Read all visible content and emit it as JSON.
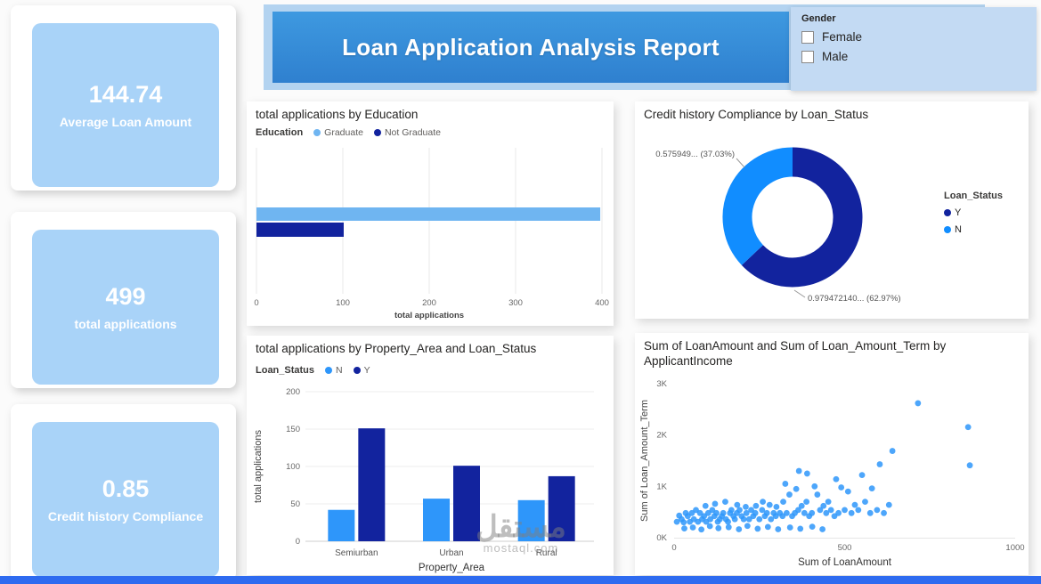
{
  "header": {
    "title": "Loan Application Analysis Report"
  },
  "gender_slicer": {
    "label": "Gender",
    "options": [
      {
        "label": "Female",
        "checked": false
      },
      {
        "label": "Male",
        "checked": false
      }
    ]
  },
  "kpis": [
    {
      "value": "144.74",
      "label": "Average Loan Amount"
    },
    {
      "value": "499",
      "label": "total applications"
    },
    {
      "value": "0.85",
      "label": "Credit history Compliance"
    }
  ],
  "colors": {
    "kpi_card": "#A9D3F8",
    "header_strip": "#B3D3F0",
    "banner_top": "#3E99E0",
    "banner_bottom": "#2F80CF",
    "slicer_bg": "#C3DAF3",
    "bottom_bar": "#2E6BF0",
    "light_blue": "#6FB5F1",
    "medium_blue": "#2E96FA",
    "bright_blue": "#118DFF",
    "dark_navy": "#12239E"
  },
  "watermark": {
    "line1": "مستقل",
    "line2": "mostaql.com"
  },
  "chart_data": [
    {
      "type": "bar",
      "orientation": "horizontal",
      "title": "total applications by Education",
      "legend_title": "Education",
      "series": [
        {
          "name": "Graduate",
          "color": "#6FB5F1",
          "value": 398
        },
        {
          "name": "Not Graduate",
          "color": "#12239E",
          "value": 101
        }
      ],
      "xlabel": "total applications",
      "xlim": [
        0,
        400
      ],
      "xticks": [
        0,
        100,
        200,
        300,
        400
      ]
    },
    {
      "type": "pie",
      "donut": true,
      "title": "Credit history Compliance by Loan_Status",
      "legend_title": "Loan_Status",
      "slices": [
        {
          "name": "Y",
          "color": "#12239E",
          "pct": 62.97,
          "label": "0.979472140... (62.97%)"
        },
        {
          "name": "N",
          "color": "#118DFF",
          "pct": 37.03,
          "label": "0.575949... (37.03%)"
        }
      ]
    },
    {
      "type": "bar",
      "orientation": "vertical",
      "title": "total applications by Property_Area and Loan_Status",
      "legend_title": "Loan_Status",
      "categories": [
        "Semiurban",
        "Urban",
        "Rural"
      ],
      "series": [
        {
          "name": "N",
          "color": "#2E96FA",
          "values": [
            42,
            57,
            55
          ]
        },
        {
          "name": "Y",
          "color": "#12239E",
          "values": [
            151,
            101,
            87
          ]
        }
      ],
      "ylabel": "total applications",
      "xlabel": "Property_Area",
      "ylim": [
        0,
        200
      ],
      "yticks": [
        0,
        50,
        100,
        150,
        200
      ]
    },
    {
      "type": "scatter",
      "title": "Sum of LoanAmount and Sum of Loan_Amount_Term by ApplicantIncome",
      "xlabel": "Sum of LoanAmount",
      "ylabel": "Sum of Loan_Amount_Term",
      "xlim": [
        0,
        1000
      ],
      "ylim": [
        0,
        3000
      ],
      "xticks": [
        0,
        500,
        1000
      ],
      "yticks": [
        0,
        1000,
        2000,
        3000
      ],
      "ytick_labels": [
        "0K",
        "1K",
        "2K",
        "3K"
      ],
      "color": "#2E96FA",
      "points": [
        [
          8,
          310
        ],
        [
          15,
          430
        ],
        [
          22,
          360
        ],
        [
          28,
          300
        ],
        [
          30,
          180
        ],
        [
          34,
          480
        ],
        [
          40,
          420
        ],
        [
          46,
          310
        ],
        [
          52,
          480
        ],
        [
          55,
          200
        ],
        [
          58,
          360
        ],
        [
          64,
          540
        ],
        [
          70,
          310
        ],
        [
          76,
          480
        ],
        [
          80,
          160
        ],
        [
          82,
          360
        ],
        [
          88,
          420
        ],
        [
          92,
          620
        ],
        [
          94,
          310
        ],
        [
          100,
          480
        ],
        [
          105,
          225
        ],
        [
          106,
          360
        ],
        [
          112,
          540
        ],
        [
          118,
          420
        ],
        [
          120,
          660
        ],
        [
          124,
          480
        ],
        [
          128,
          310
        ],
        [
          130,
          185
        ],
        [
          134,
          360
        ],
        [
          140,
          420
        ],
        [
          144,
          480
        ],
        [
          150,
          700
        ],
        [
          152,
          360
        ],
        [
          158,
          310
        ],
        [
          160,
          205
        ],
        [
          164,
          480
        ],
        [
          168,
          540
        ],
        [
          174,
          420
        ],
        [
          178,
          360
        ],
        [
          184,
          480
        ],
        [
          185,
          640
        ],
        [
          190,
          165
        ],
        [
          192,
          540
        ],
        [
          198,
          420
        ],
        [
          204,
          360
        ],
        [
          210,
          600
        ],
        [
          212,
          480
        ],
        [
          215,
          230
        ],
        [
          220,
          360
        ],
        [
          226,
          540
        ],
        [
          232,
          420
        ],
        [
          238,
          480
        ],
        [
          240,
          620
        ],
        [
          245,
          175
        ],
        [
          250,
          360
        ],
        [
          258,
          540
        ],
        [
          260,
          700
        ],
        [
          266,
          420
        ],
        [
          272,
          480
        ],
        [
          275,
          210
        ],
        [
          280,
          640
        ],
        [
          284,
          360
        ],
        [
          292,
          480
        ],
        [
          298,
          420
        ],
        [
          300,
          600
        ],
        [
          305,
          165
        ],
        [
          310,
          480
        ],
        [
          318,
          420
        ],
        [
          320,
          700
        ],
        [
          326,
          1050
        ],
        [
          330,
          480
        ],
        [
          338,
          840
        ],
        [
          340,
          200
        ],
        [
          346,
          420
        ],
        [
          354,
          480
        ],
        [
          358,
          950
        ],
        [
          364,
          540
        ],
        [
          366,
          1300
        ],
        [
          370,
          175
        ],
        [
          374,
          620
        ],
        [
          382,
          480
        ],
        [
          388,
          700
        ],
        [
          390,
          1250
        ],
        [
          396,
          420
        ],
        [
          404,
          480
        ],
        [
          405,
          215
        ],
        [
          412,
          1000
        ],
        [
          420,
          840
        ],
        [
          428,
          540
        ],
        [
          435,
          165
        ],
        [
          438,
          620
        ],
        [
          446,
          480
        ],
        [
          452,
          700
        ],
        [
          460,
          540
        ],
        [
          470,
          420
        ],
        [
          475,
          1140
        ],
        [
          482,
          480
        ],
        [
          490,
          980
        ],
        [
          500,
          540
        ],
        [
          510,
          900
        ],
        [
          520,
          480
        ],
        [
          530,
          640
        ],
        [
          540,
          540
        ],
        [
          551,
          1220
        ],
        [
          560,
          700
        ],
        [
          575,
          480
        ],
        [
          580,
          960
        ],
        [
          595,
          540
        ],
        [
          603,
          1430
        ],
        [
          615,
          480
        ],
        [
          630,
          640
        ],
        [
          640,
          1690
        ],
        [
          715,
          2620
        ],
        [
          862,
          2155
        ],
        [
          867,
          1410
        ]
      ]
    }
  ]
}
